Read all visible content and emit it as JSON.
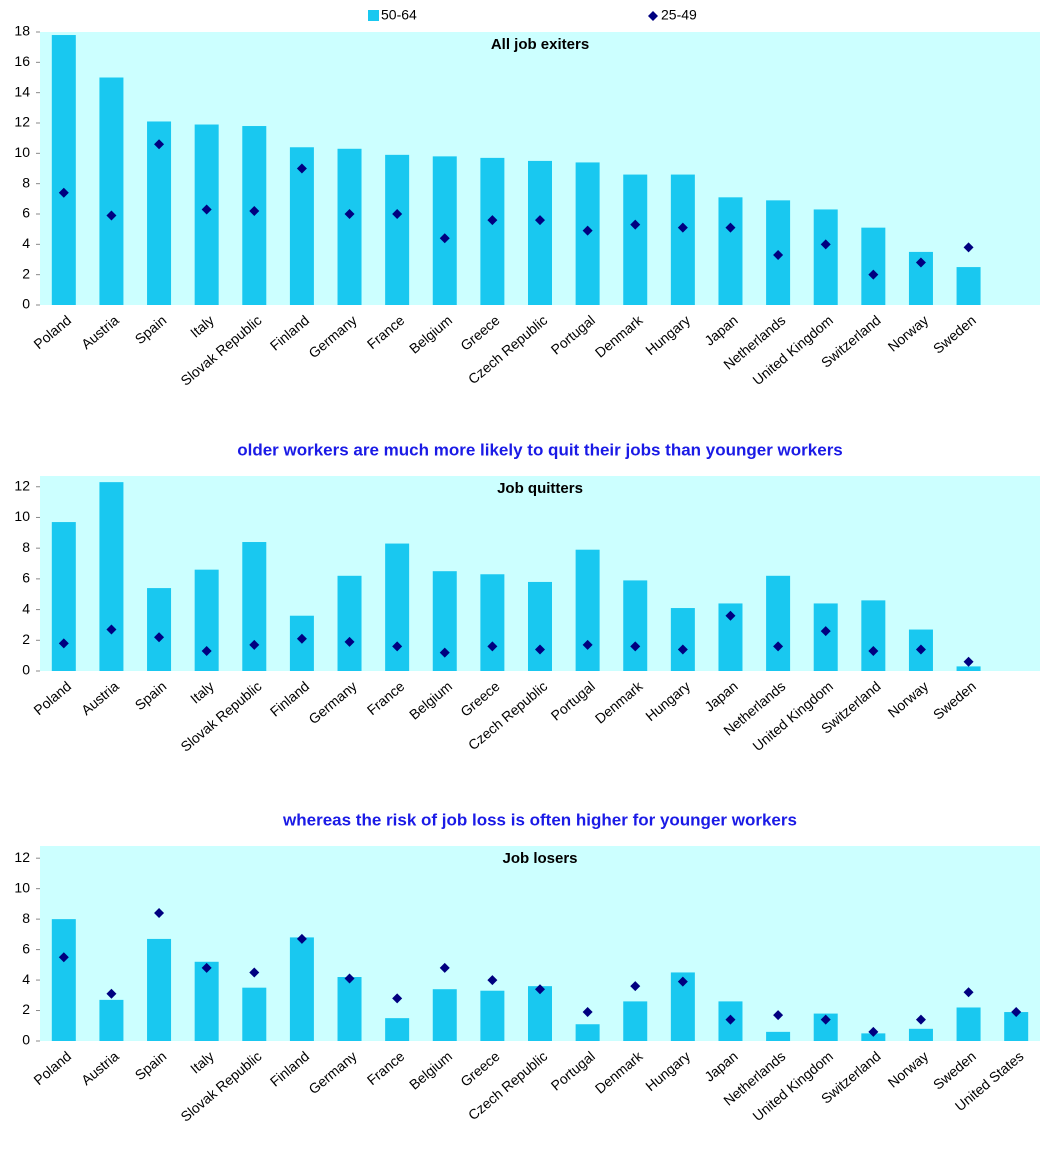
{
  "chart_data": [
    {
      "type": "bar",
      "title": "All job exiters",
      "legend": "top",
      "categories": [
        "Poland",
        "Austria",
        "Spain",
        "Italy",
        "Slovak Republic",
        "Finland",
        "Germany",
        "France",
        "Belgium",
        "Greece",
        "Czech Republic",
        "Portugal",
        "Denmark",
        "Hungary",
        "Japan",
        "Netherlands",
        "United Kingdom",
        "Switzerland",
        "Norway",
        "Sweden",
        null
      ],
      "series": [
        {
          "name": "50-64",
          "color": "#19c8f0",
          "marker": "bar",
          "values": [
            17.8,
            15.0,
            12.1,
            11.9,
            11.8,
            10.4,
            10.3,
            9.9,
            9.8,
            9.7,
            9.5,
            9.4,
            8.6,
            8.6,
            7.1,
            6.9,
            6.3,
            5.1,
            3.5,
            2.5,
            null
          ]
        },
        {
          "name": "25-49",
          "color": "#000080",
          "marker": "diamond",
          "values": [
            7.4,
            5.9,
            10.6,
            6.3,
            6.2,
            9.0,
            6.0,
            6.0,
            4.4,
            5.6,
            5.6,
            4.9,
            5.3,
            5.1,
            5.1,
            3.3,
            4.0,
            2.0,
            2.8,
            3.8,
            null
          ]
        }
      ],
      "ylim": [
        0,
        18
      ],
      "yticks": [
        0,
        2,
        4,
        6,
        8,
        10,
        12,
        14,
        16,
        18
      ],
      "grid": false
    },
    {
      "type": "bar",
      "title": "Job quitters",
      "subtitle": "older workers are much more likely to quit their jobs than younger workers",
      "categories": [
        "Poland",
        "Austria",
        "Spain",
        "Italy",
        "Slovak Republic",
        "Finland",
        "Germany",
        "France",
        "Belgium",
        "Greece",
        "Czech Republic",
        "Portugal",
        "Denmark",
        "Hungary",
        "Japan",
        "Netherlands",
        "United Kingdom",
        "Switzerland",
        "Norway",
        "Sweden",
        null
      ],
      "series": [
        {
          "color": "#19c8f0",
          "marker": "bar",
          "values": [
            9.7,
            12.3,
            5.4,
            6.6,
            8.4,
            3.6,
            6.2,
            8.3,
            6.5,
            6.3,
            5.8,
            7.9,
            5.9,
            4.1,
            4.4,
            6.2,
            4.4,
            4.6,
            2.7,
            0.3,
            null
          ]
        },
        {
          "color": "#000080",
          "marker": "diamond",
          "values": [
            1.8,
            2.7,
            2.2,
            1.3,
            1.7,
            2.1,
            1.9,
            1.6,
            1.2,
            1.6,
            1.4,
            1.7,
            1.6,
            1.4,
            3.6,
            1.6,
            2.6,
            1.3,
            1.4,
            0.6,
            null
          ]
        }
      ],
      "ylim": [
        0,
        12.7
      ],
      "yticks": [
        0,
        2,
        4,
        6,
        8,
        10,
        12
      ],
      "grid": false
    },
    {
      "type": "bar",
      "title": "Job losers",
      "subtitle": "whereas the risk of job loss is often higher for younger workers",
      "categories": [
        "Poland",
        "Austria",
        "Spain",
        "Italy",
        "Slovak Republic",
        "Finland",
        "Germany",
        "France",
        "Belgium",
        "Greece",
        "Czech Republic",
        "Portugal",
        "Denmark",
        "Hungary",
        "Japan",
        "Netherlands",
        "United Kingdom",
        "Switzerland",
        "Norway",
        "Sweden",
        "United States"
      ],
      "series": [
        {
          "color": "#19c8f0",
          "marker": "bar",
          "values": [
            8.0,
            2.7,
            6.7,
            5.2,
            3.5,
            6.8,
            4.2,
            1.5,
            3.4,
            3.3,
            3.6,
            1.1,
            2.6,
            4.5,
            2.6,
            0.6,
            1.8,
            0.5,
            0.8,
            2.2,
            1.9
          ]
        },
        {
          "color": "#000080",
          "marker": "diamond",
          "values": [
            5.5,
            3.1,
            8.4,
            4.8,
            4.5,
            6.7,
            4.1,
            2.8,
            4.8,
            4.0,
            3.4,
            1.9,
            3.6,
            3.9,
            1.4,
            1.7,
            1.4,
            0.6,
            1.4,
            3.2,
            1.9
          ]
        }
      ],
      "ylim": [
        0,
        12.8
      ],
      "yticks": [
        0,
        2,
        4,
        6,
        8,
        10,
        12
      ],
      "grid": false
    }
  ]
}
